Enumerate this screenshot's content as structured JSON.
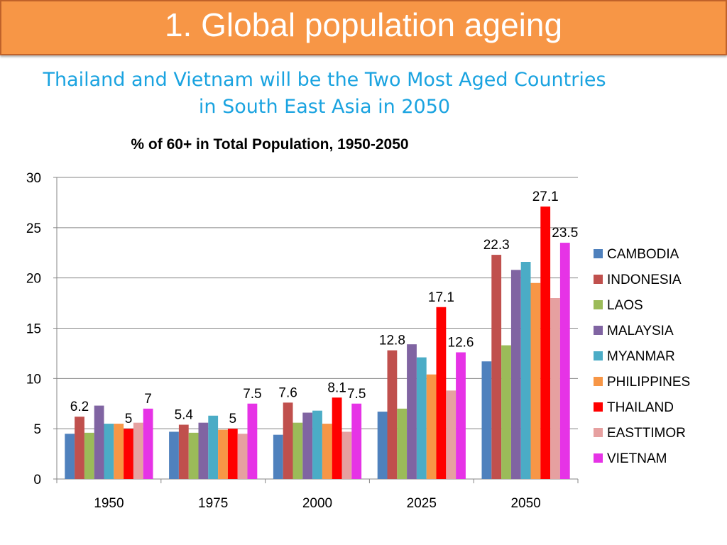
{
  "slide": {
    "title": "1. Global population ageing",
    "subtitle_line1": "Thailand and Vietnam will be the Two Most Aged Countries",
    "subtitle_line2": "in South East Asia in 2050"
  },
  "colors": {
    "banner": "#F79646",
    "subtitle": "#1AA3E0"
  },
  "chart_data": {
    "type": "bar",
    "title": "% of 60+ in Total Population, 1950-2050",
    "xlabel": "",
    "ylabel": "",
    "ylim": [
      0,
      30
    ],
    "yticks": [
      0,
      5,
      10,
      15,
      20,
      25,
      30
    ],
    "grid": "horizontal",
    "legend_position": "right",
    "categories": [
      "1950",
      "1975",
      "2000",
      "2025",
      "2050"
    ],
    "series": [
      {
        "name": "CAMBODIA",
        "color": "#4F81BD",
        "values": [
          4.5,
          4.7,
          4.4,
          6.7,
          11.7
        ]
      },
      {
        "name": "INDONESIA",
        "color": "#C0504D",
        "values": [
          6.2,
          5.4,
          7.6,
          12.8,
          22.3
        ]
      },
      {
        "name": "LAOS",
        "color": "#9BBB59",
        "values": [
          4.6,
          4.6,
          5.6,
          7.0,
          13.3
        ]
      },
      {
        "name": "MALAYSIA",
        "color": "#8064A2",
        "values": [
          7.3,
          5.6,
          6.6,
          13.4,
          20.8
        ]
      },
      {
        "name": "MYANMAR",
        "color": "#4BACC6",
        "values": [
          5.5,
          6.3,
          6.8,
          12.1,
          21.6
        ]
      },
      {
        "name": "PHILIPPINES",
        "color": "#F79646",
        "values": [
          5.5,
          4.9,
          5.5,
          10.4,
          19.5
        ]
      },
      {
        "name": "THAILAND",
        "color": "#FF0000",
        "values": [
          5.0,
          5.0,
          8.1,
          17.1,
          27.1
        ]
      },
      {
        "name": "EASTTIMOR",
        "color": "#E6A0A0",
        "values": [
          5.6,
          4.5,
          4.7,
          8.8,
          18.0
        ]
      },
      {
        "name": "VIETNAM",
        "color": "#E633E6",
        "values": [
          7.0,
          7.5,
          7.5,
          12.6,
          23.5
        ]
      }
    ],
    "data_labels": [
      {
        "series": "INDONESIA",
        "category": "1950",
        "text": "6.2"
      },
      {
        "series": "THAILAND",
        "category": "1950",
        "text": "5"
      },
      {
        "series": "VIETNAM",
        "category": "1950",
        "text": "7"
      },
      {
        "series": "INDONESIA",
        "category": "1975",
        "text": "5.4"
      },
      {
        "series": "THAILAND",
        "category": "1975",
        "text": "5"
      },
      {
        "series": "VIETNAM",
        "category": "1975",
        "text": "7.5"
      },
      {
        "series": "INDONESIA",
        "category": "2000",
        "text": "7.6"
      },
      {
        "series": "THAILAND",
        "category": "2000",
        "text": "8.1"
      },
      {
        "series": "VIETNAM",
        "category": "2000",
        "text": "7.5"
      },
      {
        "series": "INDONESIA",
        "category": "2025",
        "text": "12.8"
      },
      {
        "series": "THAILAND",
        "category": "2025",
        "text": "17.1"
      },
      {
        "series": "VIETNAM",
        "category": "2025",
        "text": "12.6"
      },
      {
        "series": "INDONESIA",
        "category": "2050",
        "text": "22.3"
      },
      {
        "series": "THAILAND",
        "category": "2050",
        "text": "27.1"
      },
      {
        "series": "VIETNAM",
        "category": "2050",
        "text": "23.5"
      }
    ]
  }
}
